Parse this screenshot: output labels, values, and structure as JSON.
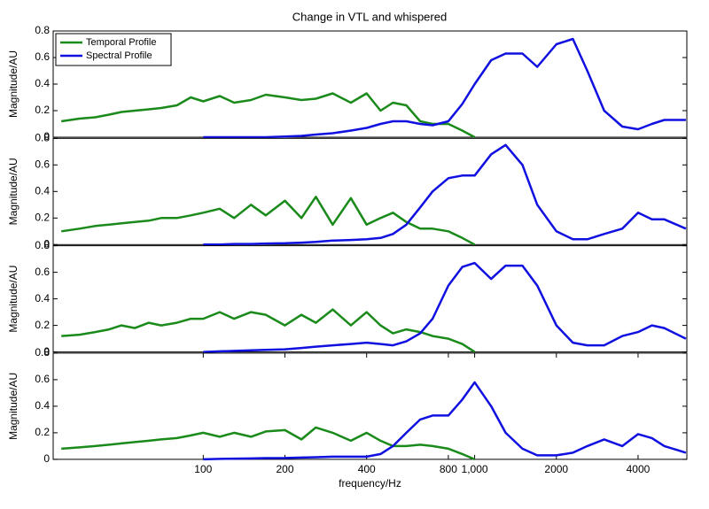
{
  "chart_data": [
    {
      "type": "line",
      "title": "Change in VTL and whispered",
      "ylabel": "Magnitude/AU",
      "legend": "upper left",
      "xscale": "log",
      "xlim": [
        28,
        6050
      ],
      "ylim": [
        0,
        0.8
      ],
      "yticks": [
        0,
        0.2,
        0.4,
        0.6,
        0.8
      ],
      "x": [
        30,
        35,
        40,
        45,
        50,
        56,
        63,
        70,
        80,
        90,
        100,
        115,
        130,
        150,
        170,
        200,
        230,
        260,
        300,
        350,
        400,
        450,
        500,
        560,
        630,
        700,
        800,
        900,
        1000,
        1150,
        1300,
        1500,
        1700,
        2000,
        2300,
        2600,
        3000,
        3500,
        4000,
        4500,
        5000,
        6000
      ],
      "series": [
        {
          "name": "Temporal Profile",
          "color": "#1a8a1a",
          "values": [
            0.12,
            0.14,
            0.15,
            0.17,
            0.19,
            0.2,
            0.21,
            0.22,
            0.24,
            0.3,
            0.27,
            0.31,
            0.26,
            0.28,
            0.32,
            0.3,
            0.28,
            0.29,
            0.33,
            0.26,
            0.33,
            0.2,
            0.26,
            0.24,
            0.12,
            0.1,
            0.1,
            0.05,
            0,
            null,
            null,
            null,
            null,
            null,
            null,
            null,
            null,
            null,
            null,
            null,
            null,
            null
          ]
        },
        {
          "name": "Spectral Profile",
          "color": "#1010e0",
          "values": [
            null,
            null,
            null,
            null,
            null,
            null,
            null,
            null,
            null,
            null,
            0,
            0,
            0,
            0,
            0,
            0.005,
            0.01,
            0.02,
            0.03,
            0.05,
            0.07,
            0.1,
            0.12,
            0.12,
            0.1,
            0.09,
            0.12,
            0.25,
            0.4,
            0.58,
            0.63,
            0.63,
            0.53,
            0.7,
            0.74,
            0.5,
            0.2,
            0.08,
            0.06,
            0.1,
            0.13,
            0.13
          ]
        }
      ]
    },
    {
      "type": "line",
      "ylabel": "Magnitude/AU",
      "xscale": "log",
      "xlim": [
        28,
        6050
      ],
      "ylim": [
        0,
        0.8
      ],
      "yticks": [
        0,
        0.2,
        0.4,
        0.6,
        0.8
      ],
      "x": [
        30,
        35,
        40,
        45,
        50,
        56,
        63,
        70,
        80,
        90,
        100,
        115,
        130,
        150,
        170,
        200,
        230,
        260,
        300,
        350,
        400,
        450,
        500,
        560,
        630,
        700,
        800,
        900,
        1000,
        1150,
        1300,
        1500,
        1700,
        2000,
        2300,
        2600,
        3000,
        3500,
        4000,
        4500,
        5000,
        6000
      ],
      "series": [
        {
          "color": "#1a8a1a",
          "values": [
            0.1,
            0.12,
            0.14,
            0.15,
            0.16,
            0.17,
            0.18,
            0.2,
            0.2,
            0.22,
            0.24,
            0.27,
            0.2,
            0.3,
            0.22,
            0.33,
            0.2,
            0.36,
            0.15,
            0.35,
            0.15,
            0.2,
            0.24,
            0.17,
            0.12,
            0.12,
            0.1,
            0.05,
            0,
            null,
            null,
            null,
            null,
            null,
            null,
            null,
            null,
            null,
            null,
            null,
            null,
            null
          ]
        },
        {
          "color": "#1010e0",
          "values": [
            null,
            null,
            null,
            null,
            null,
            null,
            null,
            null,
            null,
            null,
            0,
            0,
            0.005,
            0.005,
            0.008,
            0.01,
            0.015,
            0.02,
            0.03,
            0.035,
            0.04,
            0.05,
            0.08,
            0.15,
            0.28,
            0.4,
            0.5,
            0.52,
            0.52,
            0.68,
            0.75,
            0.6,
            0.3,
            0.1,
            0.04,
            0.04,
            0.08,
            0.12,
            0.24,
            0.19,
            0.19,
            0.12
          ]
        }
      ]
    },
    {
      "type": "line",
      "ylabel": "Magnitude/AU",
      "xscale": "log",
      "xlim": [
        28,
        6050
      ],
      "ylim": [
        0,
        0.8
      ],
      "yticks": [
        0,
        0.2,
        0.4,
        0.6,
        0.8
      ],
      "x": [
        30,
        35,
        40,
        45,
        50,
        56,
        63,
        70,
        80,
        90,
        100,
        115,
        130,
        150,
        170,
        200,
        230,
        260,
        300,
        350,
        400,
        450,
        500,
        560,
        630,
        700,
        800,
        900,
        1000,
        1150,
        1300,
        1500,
        1700,
        2000,
        2300,
        2600,
        3000,
        3500,
        4000,
        4500,
        5000,
        6000
      ],
      "series": [
        {
          "color": "#1a8a1a",
          "values": [
            0.12,
            0.13,
            0.15,
            0.17,
            0.2,
            0.18,
            0.22,
            0.2,
            0.22,
            0.25,
            0.25,
            0.3,
            0.25,
            0.3,
            0.28,
            0.2,
            0.28,
            0.22,
            0.32,
            0.2,
            0.3,
            0.2,
            0.14,
            0.17,
            0.15,
            0.12,
            0.1,
            0.06,
            0,
            null,
            null,
            null,
            null,
            null,
            null,
            null,
            null,
            null,
            null,
            null,
            null,
            null
          ]
        },
        {
          "color": "#1010e0",
          "values": [
            null,
            null,
            null,
            null,
            null,
            null,
            null,
            null,
            null,
            null,
            0,
            0.005,
            0.008,
            0.012,
            0.016,
            0.02,
            0.03,
            0.04,
            0.05,
            0.06,
            0.07,
            0.06,
            0.05,
            0.08,
            0.14,
            0.25,
            0.5,
            0.64,
            0.67,
            0.55,
            0.65,
            0.65,
            0.5,
            0.2,
            0.07,
            0.05,
            0.05,
            0.12,
            0.15,
            0.2,
            0.18,
            0.1
          ]
        }
      ]
    },
    {
      "type": "line",
      "ylabel": "Magnitude/AU",
      "xlabel": "frequency/Hz",
      "xscale": "log",
      "xlim": [
        28,
        6050
      ],
      "ylim": [
        0,
        0.8
      ],
      "yticks": [
        0,
        0.2,
        0.4,
        0.6,
        0.8
      ],
      "xticks": [
        100,
        200,
        400,
        800,
        {
          "value": 1000,
          "label": "1,000"
        },
        2000,
        4000
      ],
      "x": [
        30,
        35,
        40,
        45,
        50,
        56,
        63,
        70,
        80,
        90,
        100,
        115,
        130,
        150,
        170,
        200,
        230,
        260,
        300,
        350,
        400,
        450,
        500,
        560,
        630,
        700,
        800,
        900,
        1000,
        1150,
        1300,
        1500,
        1700,
        2000,
        2300,
        2600,
        3000,
        3500,
        4000,
        4500,
        5000,
        6000
      ],
      "series": [
        {
          "color": "#1a8a1a",
          "values": [
            0.08,
            0.09,
            0.1,
            0.11,
            0.12,
            0.13,
            0.14,
            0.15,
            0.16,
            0.18,
            0.2,
            0.17,
            0.2,
            0.17,
            0.21,
            0.22,
            0.15,
            0.24,
            0.2,
            0.14,
            0.2,
            0.14,
            0.1,
            0.1,
            0.11,
            0.1,
            0.08,
            0.04,
            0,
            null,
            null,
            null,
            null,
            null,
            null,
            null,
            null,
            null,
            null,
            null,
            null,
            null
          ]
        },
        {
          "color": "#1010e0",
          "values": [
            null,
            null,
            null,
            null,
            null,
            null,
            null,
            null,
            null,
            null,
            0,
            0.003,
            0.005,
            0.007,
            0.009,
            0.01,
            0.013,
            0.016,
            0.02,
            0.02,
            0.02,
            0.04,
            0.1,
            0.2,
            0.3,
            0.33,
            0.33,
            0.45,
            0.58,
            0.4,
            0.2,
            0.08,
            0.03,
            0.03,
            0.05,
            0.1,
            0.15,
            0.1,
            0.19,
            0.16,
            0.1,
            0.05
          ]
        }
      ]
    }
  ]
}
